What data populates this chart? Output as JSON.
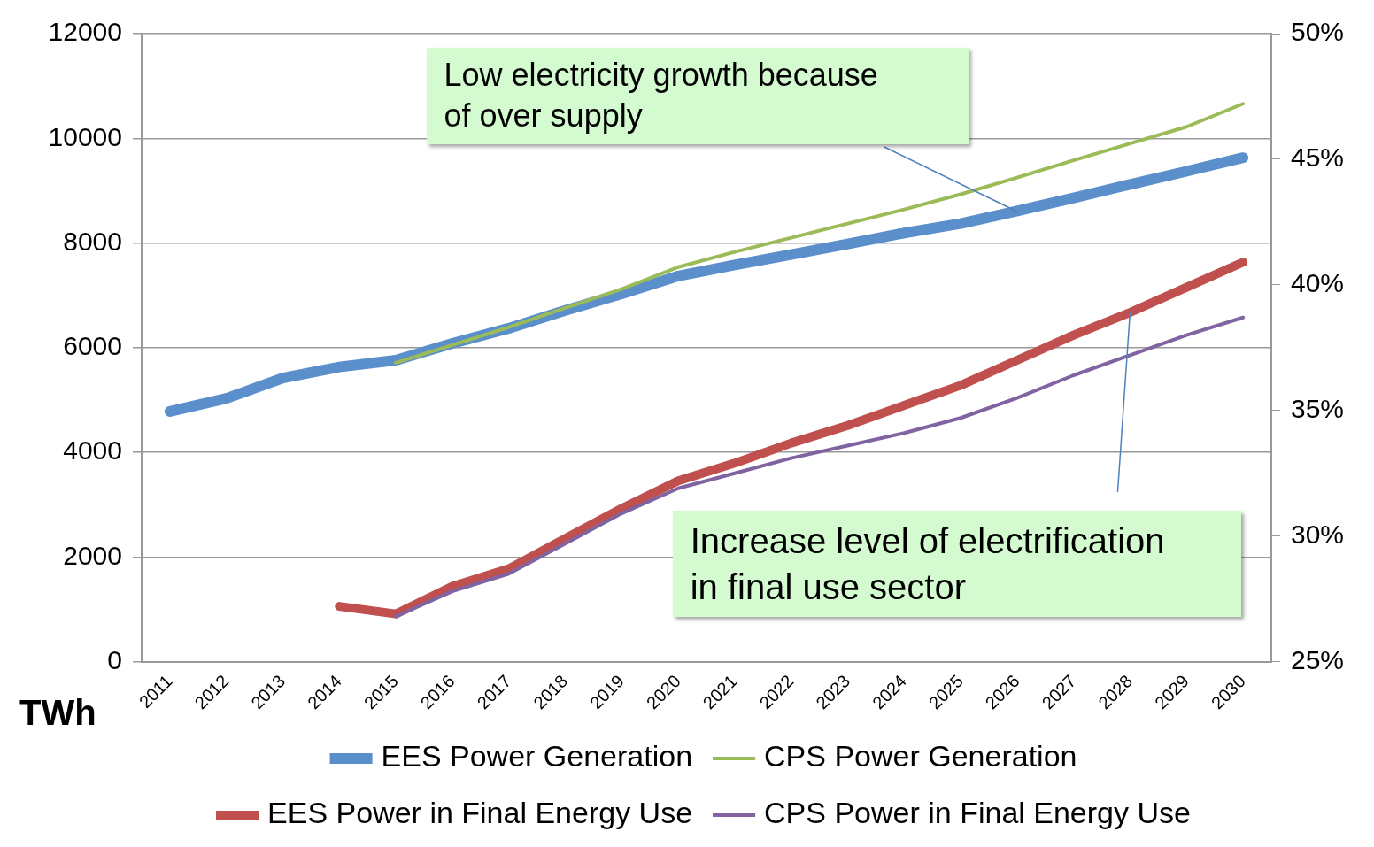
{
  "chart_data": {
    "type": "line",
    "categories": [
      "2011",
      "2012",
      "2013",
      "2014",
      "2015",
      "2016",
      "2017",
      "2018",
      "2019",
      "2020",
      "2021",
      "2022",
      "2023",
      "2024",
      "2025",
      "2026",
      "2027",
      "2028",
      "2029",
      "2030"
    ],
    "series": [
      {
        "name": "EES Power Generation",
        "color": "#5b8fcc",
        "values": [
          4780,
          5030,
          5420,
          5630,
          5760,
          6080,
          6370,
          6710,
          7030,
          7370,
          7580,
          7780,
          7980,
          8190,
          8370,
          8610,
          8860,
          9120,
          9370,
          9630
        ]
      },
      {
        "name": "CPS Power Generation",
        "color": "#9bbb59",
        "values": [
          null,
          null,
          null,
          null,
          5710,
          6050,
          6390,
          6760,
          7120,
          7540,
          7830,
          8100,
          8370,
          8640,
          8930,
          9250,
          9580,
          9900,
          10220,
          10660
        ]
      },
      {
        "name": "EES Power in Final Energy Use",
        "color": "#c0504d",
        "axis": "y2",
        "values": [
          null,
          null,
          null,
          27.2,
          26.9,
          28.0,
          28.7,
          29.9,
          31.1,
          32.2,
          32.9,
          33.7,
          34.4,
          35.2,
          36.0,
          37.0,
          38.0,
          38.9,
          39.9,
          40.9
        ]
      },
      {
        "name": "CPS Power in Final Energy Use",
        "color": "#8064a2",
        "axis": "y2",
        "values": [
          null,
          null,
          null,
          null,
          26.8,
          27.8,
          28.5,
          29.7,
          30.9,
          31.9,
          32.5,
          33.1,
          33.6,
          34.1,
          34.7,
          35.5,
          36.4,
          37.2,
          38.0,
          38.7
        ]
      }
    ],
    "ylabel": "TWh",
    "ylim": [
      0,
      12000
    ],
    "yticks": [
      0,
      2000,
      4000,
      6000,
      8000,
      10000,
      12000
    ],
    "y2lim": [
      25,
      50
    ],
    "y2ticks": [
      {
        "value": 25,
        "label": "25%"
      },
      {
        "value": 30,
        "label": "30%"
      },
      {
        "value": 35,
        "label": "35%"
      },
      {
        "value": 40,
        "label": "40%"
      },
      {
        "value": 45,
        "label": "45%"
      },
      {
        "value": 50,
        "label": "50%"
      }
    ],
    "annotations": [
      {
        "text": "Low electricity growth because\nof over supply",
        "x": "2026",
        "y": 8600
      },
      {
        "text": "Increase level of electrification\nin final use sector",
        "x": "2028",
        "y": 6700
      }
    ],
    "grid": "y",
    "legend": "bottom",
    "marker": "none",
    "line_style": "solid"
  }
}
